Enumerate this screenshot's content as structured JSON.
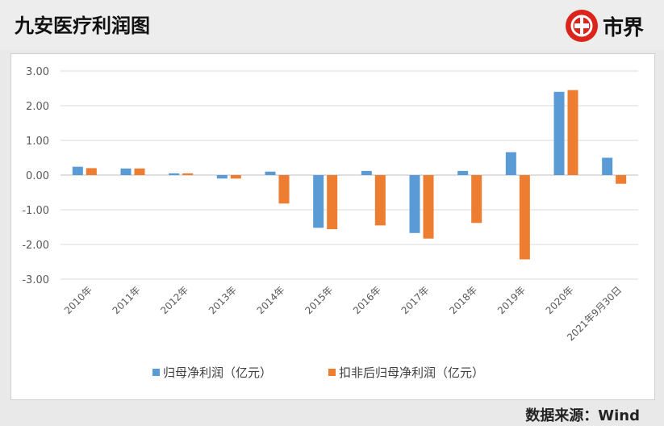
{
  "header": {
    "title": "九安医疗利润图",
    "brand_name": "市界",
    "brand_color": "#d9251c"
  },
  "footer": {
    "source": "数据来源：Wind"
  },
  "chart_data": {
    "type": "bar",
    "title": "",
    "xlabel": "",
    "ylabel": "",
    "ylim": [
      -3,
      3
    ],
    "yticks": [
      "3.00",
      "2.00",
      "1.00",
      "0.00",
      "-1.00",
      "-2.00",
      "-3.00"
    ],
    "grid": true,
    "legend_position": "bottom",
    "categories": [
      "2010年",
      "2011年",
      "2012年",
      "2013年",
      "2014年",
      "2015年",
      "2016年",
      "2017年",
      "2018年",
      "2019年",
      "2020年",
      "2021年9月30日"
    ],
    "series": [
      {
        "name": "归母净利润（亿元）",
        "color": "#5b9bd5",
        "values": [
          0.24,
          0.19,
          0.05,
          -0.1,
          0.1,
          -1.52,
          0.12,
          -1.67,
          0.12,
          0.66,
          2.4,
          0.5
        ]
      },
      {
        "name": "扣非后归母净利润（亿元）",
        "color": "#ed7d31",
        "values": [
          0.2,
          0.19,
          0.05,
          -0.1,
          -0.82,
          -1.56,
          -1.45,
          -1.83,
          -1.38,
          -2.43,
          2.45,
          -0.25
        ]
      }
    ]
  }
}
